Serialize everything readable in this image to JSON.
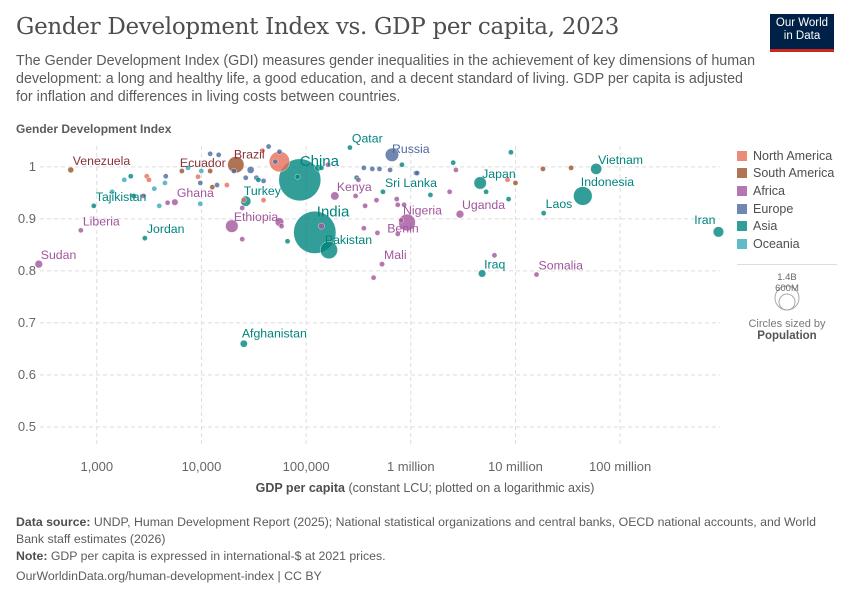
{
  "header": {
    "title": "Gender Development Index vs. GDP per capita, 2023",
    "subtitle": "The Gender Development Index (GDI) measures gender inequalities in the achievement of key dimensions of human development: a long and healthy life, a good education, and a decent standard of living. GDP per capita is adjusted for inflation and differences in living costs between countries.",
    "logo": "Our World in Data"
  },
  "chart_data": {
    "type": "scatter",
    "ylabel": "Gender Development Index",
    "xlabel_bold": "GDP per capita",
    "xlabel_rest": " (constant LCU; plotted on a logarithmic axis)",
    "xscale": "log",
    "xlim": [
      230,
      900000000
    ],
    "ylim": [
      0.5,
      1.04
    ],
    "grid": true,
    "xticks": [
      {
        "v": 1000,
        "label": "1,000"
      },
      {
        "v": 10000,
        "label": "10,000"
      },
      {
        "v": 100000,
        "label": "100,000"
      },
      {
        "v": 1000000,
        "label": "1 million"
      },
      {
        "v": 10000000,
        "label": "10 million"
      },
      {
        "v": 100000000,
        "label": "100 million"
      }
    ],
    "yticks": [
      {
        "v": 0.5,
        "label": "0.5"
      },
      {
        "v": 0.6,
        "label": "0.6"
      },
      {
        "v": 0.7,
        "label": "0.7"
      },
      {
        "v": 0.8,
        "label": "0.8"
      },
      {
        "v": 0.9,
        "label": "0.9"
      },
      {
        "v": 1,
        "label": "1"
      }
    ],
    "regions": [
      {
        "name": "North America",
        "color": "#E56E5A"
      },
      {
        "name": "South America",
        "color": "#9A5129"
      },
      {
        "name": "Africa",
        "color": "#A2559C"
      },
      {
        "name": "Europe",
        "color": "#4C6A9C"
      },
      {
        "name": "Asia",
        "color": "#00847E"
      },
      {
        "name": "Oceania",
        "color": "#38AABA"
      }
    ],
    "label_colors": {
      "North America": "#C2493B",
      "South America": "#883039",
      "Africa": "#A2559C",
      "Europe": "#4C6A9C",
      "Asia": "#00847E",
      "Oceania": "#2C8A99"
    },
    "size_legend": {
      "large": "1.4B",
      "small": "600M",
      "caption": "Circles sized by",
      "variable": "Population"
    },
    "points": [
      [
        "Venezuela",
        564,
        0.994,
        "South America",
        28
      ],
      [
        "Sudan",
        279,
        0.813,
        "Africa",
        48
      ],
      [
        "Liberia",
        704,
        0.878,
        "Africa",
        5
      ],
      [
        "Tajikistan",
        936,
        0.925,
        "Asia",
        10
      ],
      [
        "Jordan",
        2880,
        0.863,
        "Asia",
        11
      ],
      [
        "Ghana",
        5570,
        0.932,
        "Africa",
        34
      ],
      [
        "Ecuador",
        6500,
        0.992,
        "South America",
        18
      ],
      [
        "Brazil",
        21300,
        1.004,
        "South America",
        216
      ],
      [
        "Ethiopia",
        19500,
        0.886,
        "Africa",
        128
      ],
      [
        "Turkey",
        26500,
        0.934,
        "Asia",
        85
      ],
      [
        "Afghanistan",
        25400,
        0.66,
        "Asia",
        42
      ],
      [
        "China",
        87000,
        0.975,
        "Asia",
        1410
      ],
      [
        "India",
        121000,
        0.874,
        "Asia",
        1430
      ],
      [
        "Pakistan",
        165000,
        0.84,
        "Asia",
        240
      ],
      [
        "Kenya",
        188000,
        0.944,
        "Africa",
        55
      ],
      [
        "Qatar",
        262000,
        1.037,
        "Asia",
        3
      ],
      [
        "Russia",
        661000,
        1.023,
        "Europe",
        144
      ],
      [
        "Sri Lanka",
        542000,
        0.952,
        "Asia",
        22
      ],
      [
        "Nigeria",
        921000,
        0.893,
        "Africa",
        224
      ],
      [
        "Benin",
        810000,
        0.897,
        "Africa",
        14
      ],
      [
        "Mali",
        531000,
        0.813,
        "Africa",
        23
      ],
      [
        "Uganda",
        2950000,
        0.909,
        "Africa",
        48
      ],
      [
        "Japan",
        4600000,
        0.969,
        "Asia",
        124
      ],
      [
        "Iraq",
        4800000,
        0.795,
        "Asia",
        45
      ],
      [
        "Laos",
        18600000,
        0.911,
        "Asia",
        8
      ],
      [
        "Somalia",
        15900000,
        0.793,
        "Africa",
        18
      ],
      [
        "Vietnam",
        59000000,
        0.996,
        "Asia",
        99
      ],
      [
        "Indonesia",
        44000000,
        0.944,
        "Asia",
        278
      ],
      [
        "Iran",
        870000000,
        0.875,
        "Asia",
        89
      ],
      [
        "",
        1830,
        0.975,
        "Oceania",
        3
      ],
      [
        "",
        2110,
        0.982,
        "Asia",
        3
      ],
      [
        "",
        1400,
        0.952,
        "Oceania",
        3
      ],
      [
        "",
        2250,
        0.944,
        "Asia",
        3
      ],
      [
        "",
        3000,
        0.982,
        "North America",
        3
      ],
      [
        "",
        3150,
        0.975,
        "North America",
        3
      ],
      [
        "",
        2800,
        0.944,
        "Africa",
        5
      ],
      [
        "",
        3950,
        0.925,
        "Oceania",
        3
      ],
      [
        "",
        4750,
        0.931,
        "Africa",
        5
      ],
      [
        "",
        3540,
        0.958,
        "Oceania",
        2
      ],
      [
        "",
        4480,
        0.969,
        "Oceania",
        2
      ],
      [
        "",
        4560,
        0.982,
        "Europe",
        3
      ],
      [
        "",
        7440,
        0.998,
        "Oceania",
        2
      ],
      [
        "",
        9270,
        0.981,
        "North America",
        3
      ],
      [
        "",
        9960,
        0.992,
        "Oceania",
        2
      ],
      [
        "",
        9740,
        0.969,
        "Europe",
        5
      ],
      [
        "",
        9740,
        0.929,
        "Oceania",
        2
      ],
      [
        "",
        12100,
        0.992,
        "South America",
        11
      ],
      [
        "",
        12700,
        0.961,
        "South America",
        7
      ],
      [
        "",
        14100,
        0.965,
        "Europe",
        5
      ],
      [
        "",
        12100,
        1.025,
        "Europe",
        3
      ],
      [
        "",
        14600,
        1.023,
        "Europe",
        5
      ],
      [
        "",
        17500,
        0.965,
        "North America",
        3
      ],
      [
        "",
        20400,
        0.992,
        "Europe",
        5
      ],
      [
        "",
        25400,
        0.936,
        "North America",
        2
      ],
      [
        "",
        24500,
        0.921,
        "Africa",
        3
      ],
      [
        "",
        24500,
        0.861,
        "Africa",
        10
      ],
      [
        "",
        29500,
        0.994,
        "Europe",
        40
      ],
      [
        "",
        26500,
        0.979,
        "Europe",
        10
      ],
      [
        "",
        33500,
        0.979,
        "Europe",
        20
      ],
      [
        "",
        35000,
        0.975,
        "Asia",
        10
      ],
      [
        "",
        39200,
        0.973,
        "Europe",
        10
      ],
      [
        "",
        39200,
        0.936,
        "North America",
        3
      ],
      [
        "",
        38300,
        1.031,
        "North America",
        3
      ],
      [
        "",
        43800,
        1.039,
        "Europe",
        5
      ],
      [
        "",
        55600,
        1.029,
        "Europe",
        3
      ],
      [
        "",
        55600,
        1.01,
        "North America",
        335
      ],
      [
        "",
        50800,
        1.01,
        "Europe",
        20
      ],
      [
        "",
        55600,
        0.894,
        "Africa",
        60
      ],
      [
        "",
        58200,
        0.886,
        "Africa",
        10
      ],
      [
        "",
        66400,
        0.857,
        "Asia",
        8
      ],
      [
        "",
        82800,
        0.981,
        "Asia",
        20
      ],
      [
        "",
        130000,
        0.998,
        "Asia",
        35
      ],
      [
        "",
        140000,
        0.998,
        "Asia",
        8
      ],
      [
        "",
        140000,
        0.886,
        "Africa",
        30
      ],
      [
        "",
        162000,
        1.004,
        "Africa",
        3
      ],
      [
        "",
        297000,
        0.944,
        "Africa",
        8
      ],
      [
        "",
        366000,
        0.925,
        "Africa",
        20
      ],
      [
        "",
        356000,
        0.998,
        "Europe",
        3
      ],
      [
        "",
        429000,
        0.996,
        "Europe",
        3
      ],
      [
        "",
        502000,
        0.996,
        "Europe",
        3
      ],
      [
        "",
        470000,
        0.936,
        "Africa",
        5
      ],
      [
        "",
        480000,
        0.873,
        "Africa",
        8
      ],
      [
        "",
        356000,
        0.882,
        "Africa",
        10
      ],
      [
        "",
        441000,
        0.787,
        "Africa",
        5
      ],
      [
        "",
        734000,
        0.938,
        "Africa",
        8
      ],
      [
        "",
        751000,
        0.927,
        "Africa",
        3
      ],
      [
        "",
        863000,
        0.927,
        "Africa",
        5
      ],
      [
        "",
        751000,
        0.871,
        "Africa",
        3
      ],
      [
        "",
        823000,
        1.004,
        "Asia",
        3
      ],
      [
        "",
        1120000,
        0.988,
        "Europe",
        3
      ],
      [
        "",
        634000,
        0.994,
        "Europe",
        3
      ],
      [
        "",
        304000,
        0.979,
        "Asia",
        5
      ],
      [
        "",
        316000,
        0.975,
        "Africa",
        3
      ],
      [
        "",
        2540000,
        1.008,
        "Asia",
        3
      ],
      [
        "",
        2700000,
        0.994,
        "Africa",
        3
      ],
      [
        "",
        1150000,
        0.988,
        "Europe",
        3
      ],
      [
        "",
        2350000,
        0.952,
        "Africa",
        20
      ],
      [
        "",
        1540000,
        0.946,
        "Asia",
        10
      ],
      [
        "",
        5240000,
        0.952,
        "Asia",
        10
      ],
      [
        "",
        8400000,
        0.975,
        "North America",
        2
      ],
      [
        "",
        10000000,
        0.969,
        "South America",
        3
      ],
      [
        "",
        8600000,
        0.938,
        "Asia",
        3
      ],
      [
        "",
        9050000,
        1.028,
        "Asia",
        3
      ],
      [
        "",
        34000000,
        0.998,
        "South America",
        20
      ],
      [
        "",
        18300000,
        0.996,
        "South America",
        3
      ],
      [
        "",
        6300000,
        0.83,
        "Africa",
        3
      ]
    ]
  },
  "footer": {
    "source_label": "Data source:",
    "source": " UNDP, Human Development Report (2025); National statistical organizations and central banks, OECD national accounts, and World Bank staff estimates (2026)",
    "note_label": "Note:",
    "note": " GDP per capita is expressed in international-$ at 2021 prices.",
    "url": "OurWorldinData.org/human-development-index | CC BY"
  }
}
